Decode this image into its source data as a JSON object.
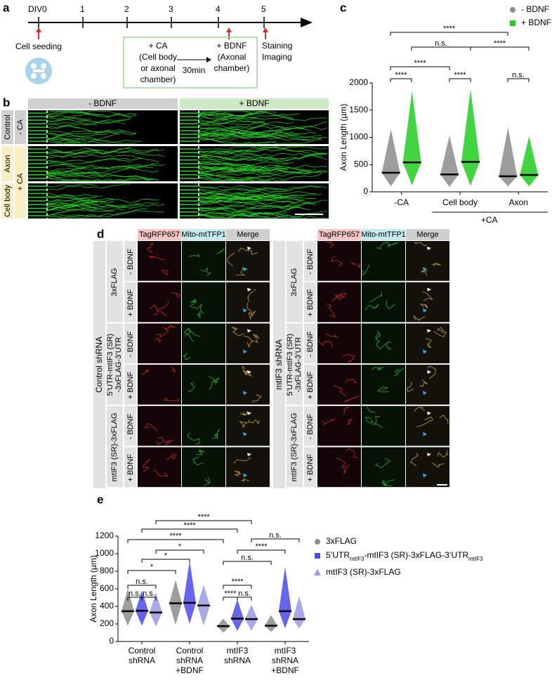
{
  "panel_labels": [
    "a",
    "b",
    "c",
    "d",
    "e"
  ],
  "timeline": {
    "days": [
      "DIV0",
      "1",
      "2",
      "3",
      "4",
      "5"
    ],
    "seeding": "Cell seeding",
    "treatment": [
      "+ CA",
      "(Cell body",
      "or axonal",
      "chamber)"
    ],
    "interval": "30min",
    "stimulus": [
      "+ BDNF",
      "(Axonal",
      "chamber)"
    ],
    "readout": [
      "Staining",
      "Imaging"
    ]
  },
  "panel_b": {
    "columns": [
      "- BDNF",
      "+ BDNF"
    ],
    "rows": [
      "Control",
      "Axon",
      "Cell body"
    ],
    "conditions": [
      "- CA",
      "+ CA"
    ]
  },
  "panel_d": {
    "channels": [
      "TagRFP657",
      "Mito-mtTFP1",
      "Merge"
    ],
    "treatments": [
      "- BDNF",
      "+ BDNF"
    ],
    "grids": [
      {
        "label": "Control shRNA",
        "constructs": [
          [
            "3xFLAG"
          ],
          [
            "5’UTR-mtIF3 (SR)",
            "-3xFLAG-3’UTR"
          ],
          [
            "mtIF3 (SR)-3xFLAG"
          ]
        ]
      },
      {
        "label": "mtIF3 shRNA",
        "constructs": [
          [
            "3xFLAG"
          ],
          [
            "5’UTR-mtIF3 (SR)",
            "-3xFLAG-3’UTR"
          ],
          [
            "mtIF3 (SR)-3xFLAG"
          ]
        ]
      }
    ]
  },
  "chart_data": [
    {
      "type": "dot",
      "y_label": "Axon Length (µm)",
      "categories": [
        "-CA",
        "Cell body",
        "Axon"
      ],
      "group_label": "+CA",
      "series": [
        {
          "name": "- BDNF",
          "color": "#8c8c8c",
          "marker": "circle",
          "values": [
            350,
            320,
            285
          ],
          "min": [
            100,
            90,
            100
          ],
          "max": [
            1150,
            1030,
            1180
          ]
        },
        {
          "name": "+ BDNF",
          "color": "#22cc22",
          "marker": "square",
          "values": [
            540,
            550,
            310
          ],
          "min": [
            120,
            110,
            100
          ],
          "max": [
            1850,
            1880,
            1020
          ]
        }
      ],
      "ylim": [
        0,
        2000
      ],
      "yticks": [
        0,
        500,
        1000,
        1500,
        2000
      ],
      "significance": [
        "****",
        "n.s.",
        "****",
        "****",
        "****",
        "****",
        "n.s."
      ],
      "legend": "top-right"
    },
    {
      "type": "dot",
      "y_label": "Axon Length (μm)",
      "categories": [
        [
          "Control",
          "shRNA"
        ],
        [
          "Control",
          "shRNA",
          "+BDNF"
        ],
        [
          "mtIF3",
          "shRNA"
        ],
        [
          "mtIF3",
          "shRNA",
          "+BDNF"
        ]
      ],
      "series": [
        {
          "name": "3xFLAG",
          "color": "#8c8c8c",
          "marker": "circle",
          "values": [
            345,
            435,
            175,
            180
          ],
          "min": [
            180,
            190,
            100,
            110
          ],
          "max": [
            600,
            700,
            260,
            300
          ]
        },
        {
          "name": [
            "5’UTR",
            {
              "sub": "mtIF3"
            },
            "-mtIF3 (SR)-3xFLAG-3’UTR",
            {
              "sub": "mtIF3"
            }
          ],
          "color": "#4b4bea",
          "marker": "square",
          "values": [
            350,
            440,
            260,
            345
          ],
          "min": [
            180,
            200,
            120,
            150
          ],
          "max": [
            580,
            920,
            480,
            850
          ]
        },
        {
          "name": "mtIF3 (SR)-3xFLAG",
          "color": "#9a9ae0",
          "marker": "triangle",
          "values": [
            330,
            410,
            255,
            255
          ],
          "min": [
            170,
            180,
            120,
            150
          ],
          "max": [
            560,
            640,
            420,
            520
          ]
        }
      ],
      "ylim": [
        0,
        1200
      ],
      "yticks": [
        0,
        200,
        400,
        600,
        800,
        1000,
        1200
      ],
      "significance": [
        "****",
        "****",
        "****",
        "*",
        "*",
        "*",
        "n.s.",
        "n.s.",
        "n.s.",
        "n.s.",
        "****",
        "n.s.",
        "****",
        "****",
        "n.s."
      ],
      "legend": "right"
    }
  ]
}
